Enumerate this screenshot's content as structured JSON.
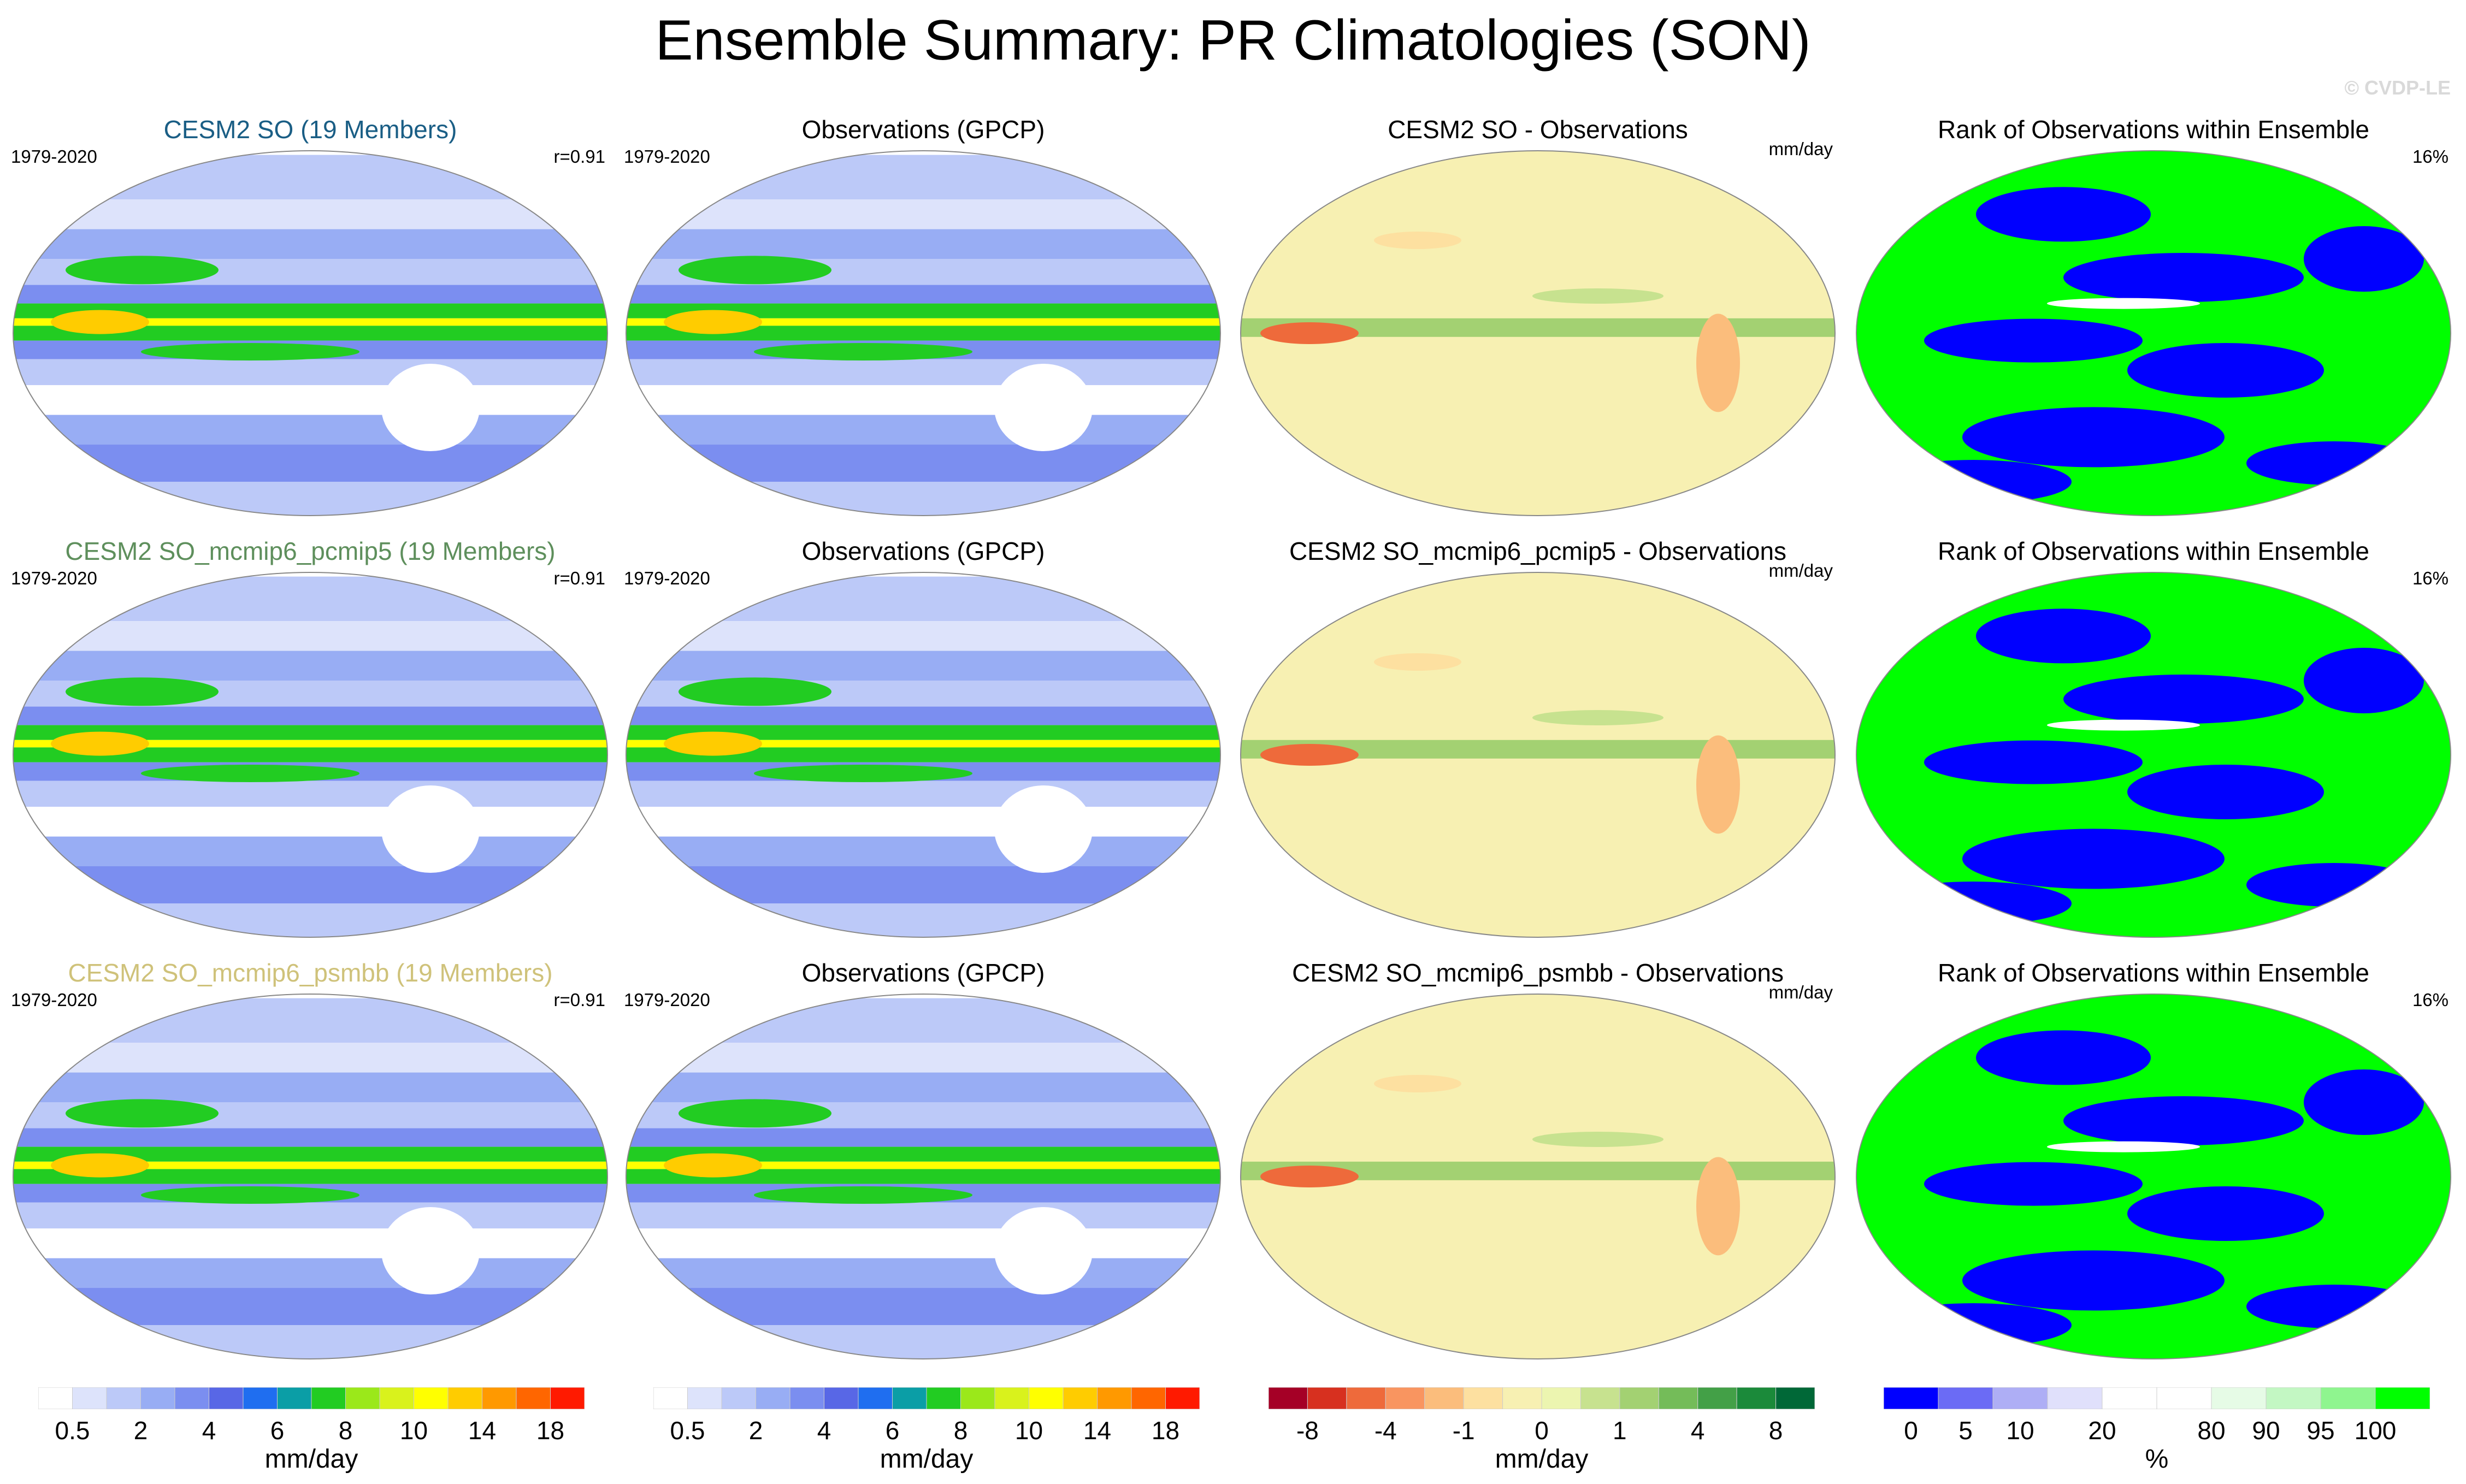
{
  "title": "Ensemble Summary: PR Climatologies (SON)",
  "watermark": "© CVDP-LE",
  "rows": [
    {
      "model": {
        "title": "CESM2 SO (19 Members)",
        "title_color": "#1a5e85",
        "period": "1979-2020",
        "stat": "r=0.91"
      },
      "obs": {
        "title": "Observations (GPCP)",
        "period": "1979-2020"
      },
      "diff": {
        "title": "CESM2 SO - Observations",
        "units": "mm/day"
      },
      "rank": {
        "title": "Rank of Observations within Ensemble",
        "stat": "16%"
      }
    },
    {
      "model": {
        "title": "CESM2 SO_mcmip6_pcmip5 (19 Members)",
        "title_color": "#5e8f5c",
        "period": "1979-2020",
        "stat": "r=0.91"
      },
      "obs": {
        "title": "Observations (GPCP)",
        "period": "1979-2020"
      },
      "diff": {
        "title": "CESM2 SO_mcmip6_pcmip5 - Observations",
        "units": "mm/day"
      },
      "rank": {
        "title": "Rank of Observations within Ensemble",
        "stat": "16%"
      }
    },
    {
      "model": {
        "title": "CESM2 SO_mcmip6_psmbb (19 Members)",
        "title_color": "#cfc27a",
        "period": "1979-2020",
        "stat": "r=0.91"
      },
      "obs": {
        "title": "Observations (GPCP)",
        "period": "1979-2020"
      },
      "diff": {
        "title": "CESM2 SO_mcmip6_psmbb - Observations",
        "units": "mm/day"
      },
      "rank": {
        "title": "Rank of Observations within Ensemble",
        "stat": "16%"
      }
    }
  ],
  "colorbars": [
    {
      "name": "precip-model",
      "colors": [
        "#ffffff",
        "#dde3fb",
        "#bcc9f8",
        "#98adf4",
        "#7b8ef0",
        "#5867e6",
        "#1f6ef0",
        "#0b9ea6",
        "#22cc22",
        "#9be81a",
        "#d9f21c",
        "#ffff00",
        "#ffcc00",
        "#ff9900",
        "#ff6600",
        "#ff1a00"
      ],
      "labels": [
        "0.5",
        "2",
        "4",
        "6",
        "8",
        "10",
        "14",
        "18"
      ],
      "units": "mm/day"
    },
    {
      "name": "precip-obs",
      "colors": [
        "#ffffff",
        "#dde3fb",
        "#bcc9f8",
        "#98adf4",
        "#7b8ef0",
        "#5867e6",
        "#1f6ef0",
        "#0b9ea6",
        "#22cc22",
        "#9be81a",
        "#d9f21c",
        "#ffff00",
        "#ffcc00",
        "#ff9900",
        "#ff6600",
        "#ff1a00"
      ],
      "labels": [
        "0.5",
        "2",
        "4",
        "6",
        "8",
        "10",
        "14",
        "18"
      ],
      "units": "mm/day"
    },
    {
      "name": "difference",
      "colors": [
        "#a50026",
        "#d7301f",
        "#ee6a3b",
        "#f99560",
        "#fbbd7c",
        "#fde0a0",
        "#f7f0b2",
        "#ecf5b0",
        "#c7e28f",
        "#a3d172",
        "#74bc59",
        "#43a047",
        "#1b8a3a",
        "#006837"
      ],
      "labels": [
        "-8",
        "-4",
        "-1",
        "0",
        "1",
        "4",
        "8"
      ],
      "units": "mm/day"
    },
    {
      "name": "rank",
      "colors": [
        "#0000ff",
        "#6b6bf5",
        "#aeaef5",
        "#e0e0fb",
        "#ffffff",
        "#ffffff",
        "#e6fbe6",
        "#c3f7c3",
        "#8ff58f",
        "#00ff00"
      ],
      "labels": [
        "0",
        "5",
        "10",
        "20",
        "80",
        "90",
        "95",
        "100"
      ],
      "units": "%"
    }
  ]
}
